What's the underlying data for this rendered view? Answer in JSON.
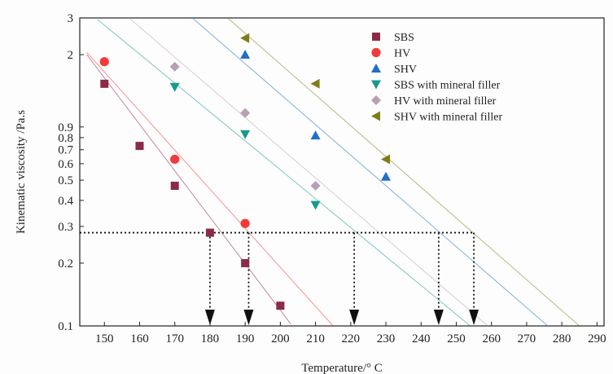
{
  "chart_data": {
    "type": "scatter",
    "x_scale": "linear",
    "y_scale": "log",
    "xlim": [
      143,
      292
    ],
    "ylim": [
      0.1,
      3
    ],
    "xlabel": "Temperature/° C",
    "ylabel": "Kinematic viscosity /Pa.s",
    "x_ticks": [
      150,
      160,
      170,
      180,
      190,
      200,
      210,
      220,
      230,
      240,
      250,
      260,
      270,
      280,
      290
    ],
    "y_ticks": [
      0.1,
      0.2,
      0.3,
      0.4,
      0.5,
      0.6,
      0.7,
      0.8,
      0.9,
      2,
      3
    ],
    "y_tick_labels": [
      "0.1",
      "0.2",
      "0.3",
      "0.4",
      "0.5",
      "0.6",
      "0.7",
      "0.8",
      "0.9",
      "2",
      "3"
    ],
    "legend_position": "top-right",
    "threshold": {
      "y": 0.28,
      "x_from": 143,
      "x_to": 255,
      "arrows_at_x": [
        180,
        191,
        221,
        245,
        255
      ]
    },
    "series": [
      {
        "name": "SBS",
        "marker": "square",
        "color": "#8b2b48",
        "points": [
          [
            150,
            1.45
          ],
          [
            160,
            0.73
          ],
          [
            170,
            0.47
          ],
          [
            180,
            0.28
          ],
          [
            190,
            0.2
          ],
          [
            200,
            0.125
          ]
        ],
        "fit": [
          [
            145,
            2.0
          ],
          [
            203,
            0.102
          ]
        ]
      },
      {
        "name": "HV",
        "marker": "circle",
        "color": "#f23a3a",
        "points": [
          [
            150,
            1.85
          ],
          [
            170,
            0.63
          ],
          [
            190,
            0.31
          ]
        ],
        "fit": [
          [
            145,
            2.05
          ],
          [
            215,
            0.1
          ]
        ]
      },
      {
        "name": "SHV",
        "marker": "triangle-up",
        "color": "#1f6fc9",
        "points": [
          [
            190,
            2.0
          ],
          [
            210,
            0.82
          ],
          [
            230,
            0.52
          ]
        ],
        "fit": [
          [
            175,
            3.0
          ],
          [
            276,
            0.1
          ]
        ]
      },
      {
        "name": "SBS with mineral filler",
        "marker": "triangle-down",
        "color": "#1a9a8c",
        "points": [
          [
            170,
            1.4
          ],
          [
            190,
            0.83
          ],
          [
            210,
            0.38
          ]
        ],
        "fit": [
          [
            148,
            2.95
          ],
          [
            254,
            0.1
          ]
        ]
      },
      {
        "name": "HV with mineral filler",
        "marker": "diamond",
        "color": "#b8a0b5",
        "points": [
          [
            170,
            1.75
          ],
          [
            190,
            1.05
          ],
          [
            210,
            0.47
          ]
        ],
        "fit": [
          [
            157,
            3.0
          ],
          [
            259,
            0.1
          ]
        ]
      },
      {
        "name": "SHV with mineral filler",
        "marker": "triangle-left",
        "color": "#7f7d18",
        "points": [
          [
            190,
            2.4
          ],
          [
            210,
            1.45
          ],
          [
            230,
            0.63
          ]
        ],
        "fit": [
          [
            185,
            3.0
          ],
          [
            285,
            0.1
          ]
        ]
      }
    ]
  }
}
